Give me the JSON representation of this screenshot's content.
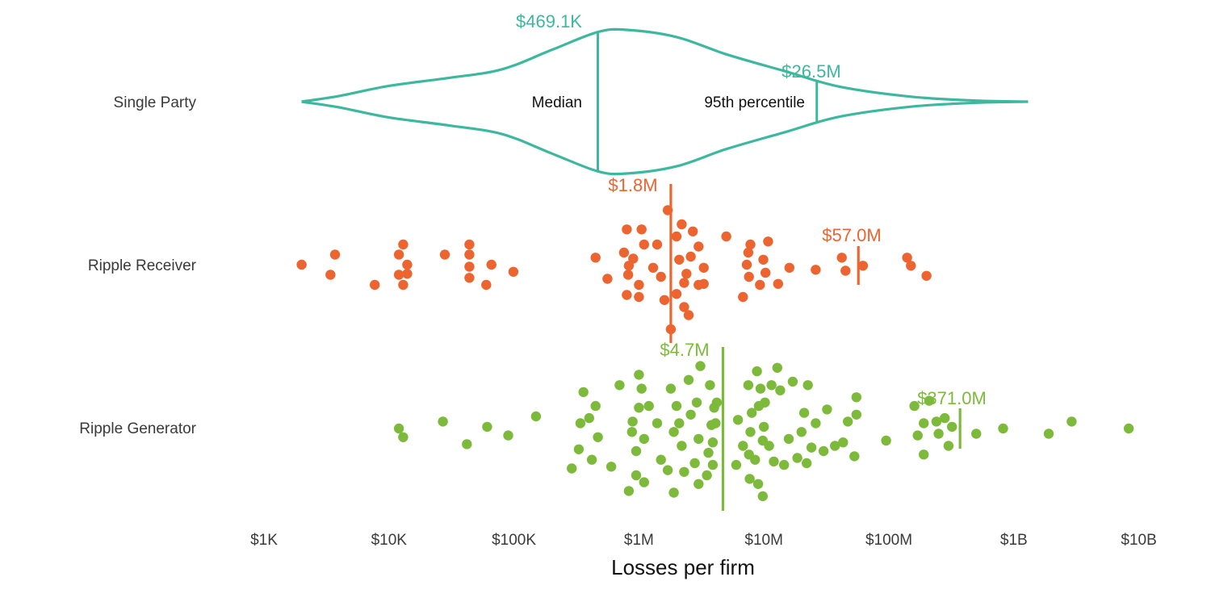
{
  "chart_data": {
    "type": "scatter",
    "subtype": "violin-and-beeswarm",
    "xscale": "log10",
    "xlim": [
      1000,
      10000000000
    ],
    "xlabel": "Losses per firm",
    "x_ticks": [
      {
        "value": 1000,
        "label": "$1K"
      },
      {
        "value": 10000,
        "label": "$10K"
      },
      {
        "value": 100000,
        "label": "$100K"
      },
      {
        "value": 1000000,
        "label": "$1M"
      },
      {
        "value": 10000000,
        "label": "$10M"
      },
      {
        "value": 100000000,
        "label": "$100M"
      },
      {
        "value": 1000000000,
        "label": "$1B"
      },
      {
        "value": 10000000000,
        "label": "$10B"
      }
    ],
    "colors": {
      "single_party": "#3db89f",
      "receiver": "#ec6530",
      "generator": "#7dba3c"
    },
    "violin": {
      "name": "Single Party",
      "median": {
        "value": 469100,
        "label": "$469.1K",
        "caption": "Median"
      },
      "p95": {
        "value": 26500000,
        "label": "$26.5M",
        "caption": "95th percentile"
      },
      "density": [
        [
          2000,
          0.0
        ],
        [
          4000,
          0.08
        ],
        [
          10000,
          0.22
        ],
        [
          30000,
          0.33
        ],
        [
          80000,
          0.45
        ],
        [
          200000,
          0.72
        ],
        [
          469100,
          0.97
        ],
        [
          800000,
          1.0
        ],
        [
          2000000,
          0.9
        ],
        [
          5000000,
          0.66
        ],
        [
          15000000,
          0.42
        ],
        [
          40000000,
          0.21
        ],
        [
          150000000,
          0.07
        ],
        [
          500000000,
          0.015
        ],
        [
          1300000000,
          0.0
        ]
      ]
    },
    "series": [
      {
        "name": "Ripple Receiver",
        "median": {
          "value": 1800000,
          "label": "$1.8M"
        },
        "p95": {
          "value": 57000000,
          "label": "$57.0M"
        },
        "points": [
          {
            "x": 2000,
            "o": 0
          },
          {
            "x": 3400,
            "o": 1
          },
          {
            "x": 3700,
            "o": -1
          },
          {
            "x": 7700,
            "o": 2
          },
          {
            "x": 12000,
            "o": -1
          },
          {
            "x": 12000,
            "o": 1
          },
          {
            "x": 13000,
            "o": -2
          },
          {
            "x": 13000,
            "o": 2
          },
          {
            "x": 14000,
            "o": 0
          },
          {
            "x": 14000,
            "o": 0.9
          },
          {
            "x": 28000,
            "o": -1
          },
          {
            "x": 44000,
            "o": -2
          },
          {
            "x": 44000,
            "o": -1
          },
          {
            "x": 44000,
            "o": 0.2
          },
          {
            "x": 44000,
            "o": 1.3
          },
          {
            "x": 60000,
            "o": 2
          },
          {
            "x": 66000,
            "o": 0
          },
          {
            "x": 99000,
            "o": 0.7
          },
          {
            "x": 450000,
            "o": -0.7
          },
          {
            "x": 560000,
            "o": 1.4
          },
          {
            "x": 760000,
            "o": -1.2
          },
          {
            "x": 800000,
            "o": 3
          },
          {
            "x": 800000,
            "o": -3.5
          },
          {
            "x": 820000,
            "o": 1.0
          },
          {
            "x": 830000,
            "o": 0.1
          },
          {
            "x": 900000,
            "o": -0.6
          },
          {
            "x": 1000000,
            "o": 2
          },
          {
            "x": 1000000,
            "o": 3.2
          },
          {
            "x": 1050000,
            "o": -3.5
          },
          {
            "x": 1100000,
            "o": -2.0
          },
          {
            "x": 1300000,
            "o": 0.3
          },
          {
            "x": 1400000,
            "o": -2
          },
          {
            "x": 1500000,
            "o": 1.2
          },
          {
            "x": 1600000,
            "o": 3.5
          },
          {
            "x": 1700000,
            "o": -5.4
          },
          {
            "x": 1800000,
            "o": 6.4
          },
          {
            "x": 2000000,
            "o": -2.8
          },
          {
            "x": 2000000,
            "o": 2.9
          },
          {
            "x": 2100000,
            "o": -0.5
          },
          {
            "x": 2200000,
            "o": -4.0
          },
          {
            "x": 2300000,
            "o": 4.2
          },
          {
            "x": 2300000,
            "o": 1.8
          },
          {
            "x": 2400000,
            "o": 0.9
          },
          {
            "x": 2500000,
            "o": 5.0
          },
          {
            "x": 2600000,
            "o": -0.8
          },
          {
            "x": 2700000,
            "o": -3.3
          },
          {
            "x": 3000000,
            "o": 2.0
          },
          {
            "x": 3000000,
            "o": -1.8
          },
          {
            "x": 3300000,
            "o": 1.9
          },
          {
            "x": 3300000,
            "o": 0.3
          },
          {
            "x": 5000000,
            "o": -2.8
          },
          {
            "x": 6800000,
            "o": 3.2
          },
          {
            "x": 7300000,
            "o": 0
          },
          {
            "x": 7500000,
            "o": -1.2
          },
          {
            "x": 7600000,
            "o": 1.2
          },
          {
            "x": 7800000,
            "o": -2.0
          },
          {
            "x": 9300000,
            "o": 2.0
          },
          {
            "x": 9900000,
            "o": -0.5
          },
          {
            "x": 10300000,
            "o": 0.8
          },
          {
            "x": 10800000,
            "o": -2.3
          },
          {
            "x": 13000000,
            "o": 1.9
          },
          {
            "x": 16000000,
            "o": 0.3
          },
          {
            "x": 26000000,
            "o": 0.5
          },
          {
            "x": 42000000,
            "o": -0.7
          },
          {
            "x": 45000000,
            "o": 0.6
          },
          {
            "x": 62000000,
            "o": 0.1
          },
          {
            "x": 140000000,
            "o": -0.7
          },
          {
            "x": 150000000,
            "o": 0.1
          },
          {
            "x": 200000000,
            "o": 1.1
          }
        ]
      },
      {
        "name": "Ripple Generator",
        "median": {
          "value": 4700000,
          "label": "$4.7M"
        },
        "p95": {
          "value": 371000000,
          "label": "$371.0M"
        },
        "points": [
          {
            "x": 12000,
            "o": 0
          },
          {
            "x": 13000,
            "o": 0.5
          },
          {
            "x": 27000,
            "o": -0.4
          },
          {
            "x": 42000,
            "o": 0.9
          },
          {
            "x": 61000,
            "o": -0.1
          },
          {
            "x": 90000,
            "o": 0.4
          },
          {
            "x": 150000,
            "o": -0.7
          },
          {
            "x": 290000,
            "o": 2.3
          },
          {
            "x": 330000,
            "o": 1.2
          },
          {
            "x": 340000,
            "o": -0.3
          },
          {
            "x": 360000,
            "o": -2.1
          },
          {
            "x": 400000,
            "o": -0.6
          },
          {
            "x": 420000,
            "o": 1.8
          },
          {
            "x": 450000,
            "o": -1.3
          },
          {
            "x": 470000,
            "o": 0.5
          },
          {
            "x": 600000,
            "o": 2.2
          },
          {
            "x": 700000,
            "o": -2.5
          },
          {
            "x": 830000,
            "o": 3.6
          },
          {
            "x": 880000,
            "o": 0.2
          },
          {
            "x": 890000,
            "o": -0.4
          },
          {
            "x": 950000,
            "o": 1.3
          },
          {
            "x": 950000,
            "o": 2.7
          },
          {
            "x": 1000000,
            "o": -1.2
          },
          {
            "x": 1000000,
            "o": -3.1
          },
          {
            "x": 1050000,
            "o": -2.3
          },
          {
            "x": 1100000,
            "o": 0.6
          },
          {
            "x": 1100000,
            "o": 3.1
          },
          {
            "x": 1200000,
            "o": -1.3
          },
          {
            "x": 1400000,
            "o": -0.3
          },
          {
            "x": 1500000,
            "o": 1.8
          },
          {
            "x": 1700000,
            "o": 2.4
          },
          {
            "x": 1800000,
            "o": -2.3
          },
          {
            "x": 1900000,
            "o": 3.7
          },
          {
            "x": 1900000,
            "o": 0.2
          },
          {
            "x": 2000000,
            "o": -1.3
          },
          {
            "x": 2100000,
            "o": -0.3
          },
          {
            "x": 2200000,
            "o": 1.0
          },
          {
            "x": 2300000,
            "o": 2.5
          },
          {
            "x": 2500000,
            "o": -2.8
          },
          {
            "x": 2600000,
            "o": -0.8
          },
          {
            "x": 2800000,
            "o": 2.0
          },
          {
            "x": 2900000,
            "o": -1.5
          },
          {
            "x": 3000000,
            "o": 3.2
          },
          {
            "x": 3000000,
            "o": 0.6
          },
          {
            "x": 3100000,
            "o": -3.6
          },
          {
            "x": 3500000,
            "o": 2.7
          },
          {
            "x": 3600000,
            "o": 1.4
          },
          {
            "x": 3700000,
            "o": -2.5
          },
          {
            "x": 3800000,
            "o": -0.2
          },
          {
            "x": 3900000,
            "o": 0.8
          },
          {
            "x": 3900000,
            "o": 2.1
          },
          {
            "x": 4000000,
            "o": -1.2
          },
          {
            "x": 4100000,
            "o": -0.3
          },
          {
            "x": 4200000,
            "o": -1.5
          },
          {
            "x": 6000000,
            "o": 2.1
          },
          {
            "x": 6200000,
            "o": -0.5
          },
          {
            "x": 6800000,
            "o": 1.0
          },
          {
            "x": 7500000,
            "o": -2.5
          },
          {
            "x": 7600000,
            "o": 1.5
          },
          {
            "x": 7700000,
            "o": 2.9
          },
          {
            "x": 7800000,
            "o": 0.2
          },
          {
            "x": 8000000,
            "o": -0.9
          },
          {
            "x": 8500000,
            "o": 1.8
          },
          {
            "x": 8800000,
            "o": -3.3
          },
          {
            "x": 9000000,
            "o": 3.2
          },
          {
            "x": 9100000,
            "o": -1.3
          },
          {
            "x": 9400000,
            "o": -2.3
          },
          {
            "x": 9800000,
            "o": 3.9
          },
          {
            "x": 9800000,
            "o": 0.7
          },
          {
            "x": 10000000,
            "o": -0.1
          },
          {
            "x": 10200000,
            "o": -1.5
          },
          {
            "x": 11000000,
            "o": 1.0
          },
          {
            "x": 11500000,
            "o": -2.5
          },
          {
            "x": 12000000,
            "o": 1.9
          },
          {
            "x": 12800000,
            "o": -3.5
          },
          {
            "x": 13500000,
            "o": -2.2
          },
          {
            "x": 14500000,
            "o": 2.1
          },
          {
            "x": 15800000,
            "o": 0.6
          },
          {
            "x": 17000000,
            "o": -2.7
          },
          {
            "x": 18500000,
            "o": 1.7
          },
          {
            "x": 20000000,
            "o": 0.2
          },
          {
            "x": 21000000,
            "o": -0.9
          },
          {
            "x": 22000000,
            "o": 2.0
          },
          {
            "x": 22500000,
            "o": -2.5
          },
          {
            "x": 24000000,
            "o": 1.1
          },
          {
            "x": 26000000,
            "o": -0.3
          },
          {
            "x": 30000000,
            "o": 1.3
          },
          {
            "x": 32000000,
            "o": -1.1
          },
          {
            "x": 37000000,
            "o": 1.0
          },
          {
            "x": 43000000,
            "o": 0.8
          },
          {
            "x": 47000000,
            "o": -0.4
          },
          {
            "x": 53000000,
            "o": 1.6
          },
          {
            "x": 55000000,
            "o": -1.8
          },
          {
            "x": 55000000,
            "o": -0.8
          },
          {
            "x": 95000000,
            "o": 0.7
          },
          {
            "x": 160000000,
            "o": -1.3
          },
          {
            "x": 170000000,
            "o": 0.4
          },
          {
            "x": 190000000,
            "o": 1.5
          },
          {
            "x": 190000000,
            "o": -0.3
          },
          {
            "x": 210000000,
            "o": -1.6
          },
          {
            "x": 240000000,
            "o": -0.4
          },
          {
            "x": 250000000,
            "o": 0.3
          },
          {
            "x": 280000000,
            "o": -0.6
          },
          {
            "x": 300000000,
            "o": 1.0
          },
          {
            "x": 320000000,
            "o": -0.1
          },
          {
            "x": 500000000,
            "o": 0.3
          },
          {
            "x": 820000000,
            "o": 0.0
          },
          {
            "x": 1900000000,
            "o": 0.3
          },
          {
            "x": 2900000000,
            "o": -0.4
          },
          {
            "x": 8300000000,
            "o": 0.0
          }
        ]
      }
    ]
  }
}
